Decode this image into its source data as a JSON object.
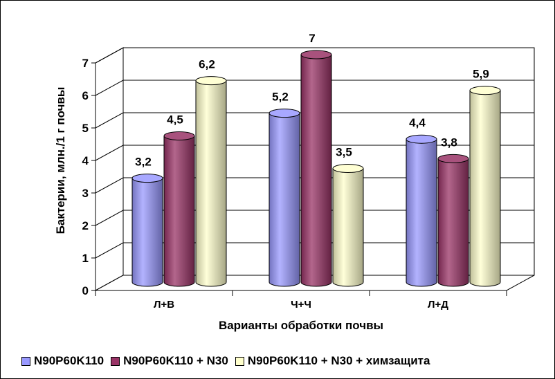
{
  "chart_data": {
    "type": "bar",
    "style": "3d-cylinder",
    "categories": [
      "Л+В",
      "Ч+Ч",
      "Л+Д"
    ],
    "series": [
      {
        "name": "N90P60K110",
        "values": [
          3.2,
          5.2,
          4.4
        ],
        "color": "#9999ff"
      },
      {
        "name": "N90P60K110 + N30",
        "values": [
          4.5,
          7,
          3.8
        ],
        "color": "#993366"
      },
      {
        "name": "N90P60K110 + N30 + химзащита",
        "values": [
          6.2,
          3.5,
          5.9
        ],
        "color": "#ffffcc"
      }
    ],
    "data_labels": [
      [
        "3,2",
        "5,2",
        "4,4"
      ],
      [
        "4,5",
        "7",
        "3,8"
      ],
      [
        "6,2",
        "3,5",
        "5,9"
      ]
    ],
    "title": "",
    "xlabel": "Варианты обработки почвы",
    "ylabel": "Бактерии, млн./1 г почвы",
    "yticks": [
      "0",
      "1",
      "2",
      "3",
      "4",
      "5",
      "6",
      "7"
    ],
    "ylim": [
      0,
      7
    ],
    "grid": true,
    "legend_position": "bottom"
  }
}
